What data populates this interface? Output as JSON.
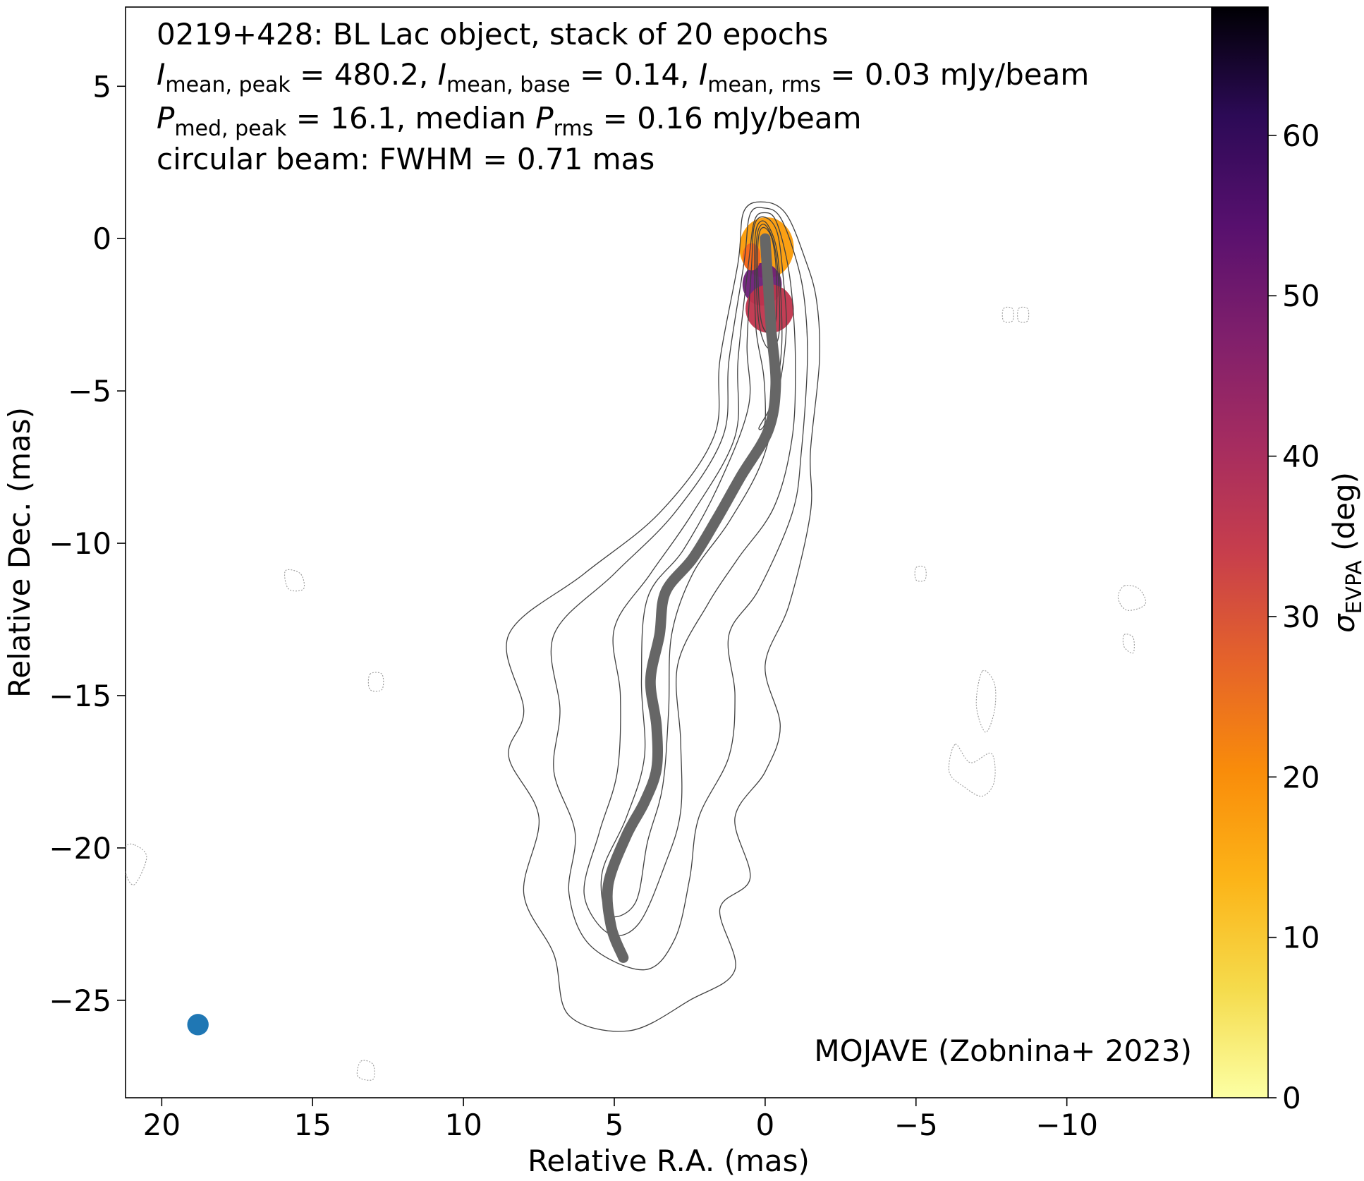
{
  "chart_data": {
    "type": "contour",
    "title_lines": [
      "0219+428: BL Lac object, stack of 20 epochs",
      "I_mean,peak = 480.2, I_mean,base = 0.14, I_mean,rms = 0.03 mJy/beam",
      "P_med,peak = 16.1, median P_rms = 0.16 mJy/beam",
      "circular beam: FWHM = 0.71 mas"
    ],
    "title": {
      "line1": "0219+428: BL Lac object, stack of 20 epochs",
      "line2": {
        "I": "I",
        "peak_sub": "mean, peak",
        "peak_val": " = 480.2, ",
        "base_sub": "mean, base",
        "base_val": " = 0.14, ",
        "rms_sub": "mean, rms",
        "rms_val": " = 0.03 mJy/beam"
      },
      "line3": {
        "P": "P",
        "peak_sub": "med, peak",
        "peak_val": " = 16.1, median ",
        "rms_sub": "rms",
        "rms_val": " = 0.16 mJy/beam"
      },
      "line4": "circular beam: FWHM = 0.71 mas"
    },
    "credit": "MOJAVE (Zobnina+ 2023)",
    "xlabel": "Relative R.A. (mas)",
    "ylabel": "Relative Dec. (mas)",
    "xlim": [
      21.2,
      -14.8
    ],
    "ylim": [
      -28.2,
      7.6
    ],
    "x_ticks": [
      20,
      15,
      10,
      5,
      0,
      -5,
      -10
    ],
    "y_ticks": [
      5,
      0,
      -5,
      -10,
      -15,
      -20,
      -25
    ],
    "colorbar": {
      "label": "σ",
      "label_sub": "EVPA",
      "label_unit": " (deg)",
      "range": [
        0,
        68
      ],
      "ticks": [
        0,
        10,
        20,
        30,
        40,
        50,
        60
      ],
      "colormap": "inferno_r"
    },
    "ridgeline": [
      [
        0.0,
        0.0
      ],
      [
        -0.1,
        -1.5
      ],
      [
        -0.2,
        -3.0
      ],
      [
        -0.35,
        -4.8
      ],
      [
        -0.1,
        -6.3
      ],
      [
        0.8,
        -7.8
      ],
      [
        1.6,
        -9.2
      ],
      [
        2.4,
        -10.5
      ],
      [
        3.3,
        -11.6
      ],
      [
        3.5,
        -13.0
      ],
      [
        3.8,
        -14.5
      ],
      [
        3.6,
        -16.0
      ],
      [
        3.6,
        -17.4
      ],
      [
        4.0,
        -18.5
      ],
      [
        4.6,
        -19.6
      ],
      [
        5.2,
        -21.2
      ],
      [
        5.1,
        -22.6
      ],
      [
        4.7,
        -23.6
      ]
    ],
    "beam": {
      "x": 18.8,
      "y": -25.8,
      "fwhm": 0.71
    },
    "intensity_contours": [
      {
        "level": 1,
        "points": [
          [
            0.9,
            -0.8
          ],
          [
            1.5,
            -4
          ],
          [
            1.7,
            -6.5
          ],
          [
            3.5,
            -9
          ],
          [
            6,
            -11
          ],
          [
            8.5,
            -13
          ],
          [
            8,
            -15.5
          ],
          [
            8.5,
            -17
          ],
          [
            7.5,
            -19
          ],
          [
            8,
            -21.5
          ],
          [
            7,
            -23.5
          ],
          [
            6.5,
            -25.5
          ],
          [
            4.5,
            -26
          ],
          [
            2.5,
            -25
          ],
          [
            1,
            -24
          ],
          [
            1.5,
            -22
          ],
          [
            0.5,
            -21
          ],
          [
            1,
            -19
          ],
          [
            0,
            -17.5
          ],
          [
            -0.5,
            -16
          ],
          [
            0,
            -14
          ],
          [
            -0.8,
            -12
          ],
          [
            -1.5,
            -9
          ],
          [
            -1.5,
            -7
          ],
          [
            -1.8,
            -4
          ],
          [
            -1.7,
            -2
          ],
          [
            -1.3,
            -0.6
          ],
          [
            -0.7,
            0.8
          ],
          [
            0,
            1.2
          ],
          [
            0.7,
            0.9
          ]
        ]
      },
      {
        "level": 2,
        "points": [
          [
            0.7,
            -0.8
          ],
          [
            1.2,
            -4
          ],
          [
            1.4,
            -6.5
          ],
          [
            3,
            -9
          ],
          [
            5,
            -11
          ],
          [
            7,
            -13
          ],
          [
            6.8,
            -15.5
          ],
          [
            7,
            -17.5
          ],
          [
            6.3,
            -19.5
          ],
          [
            6.5,
            -21.5
          ],
          [
            5.8,
            -23.2
          ],
          [
            4,
            -24
          ],
          [
            3,
            -23
          ],
          [
            2.5,
            -21
          ],
          [
            2.2,
            -19
          ],
          [
            1.2,
            -17
          ],
          [
            1,
            -15
          ],
          [
            1.2,
            -13
          ],
          [
            0.2,
            -11.5
          ],
          [
            -0.9,
            -9
          ],
          [
            -1.2,
            -7
          ],
          [
            -1.4,
            -4
          ],
          [
            -1.3,
            -2
          ],
          [
            -1,
            -0.6
          ],
          [
            -0.5,
            0.7
          ],
          [
            0,
            1
          ],
          [
            0.5,
            0.8
          ]
        ]
      },
      {
        "level": 3,
        "points": [
          [
            0.55,
            -0.8
          ],
          [
            0.9,
            -4
          ],
          [
            1,
            -6.5
          ],
          [
            2.4,
            -9
          ],
          [
            3.8,
            -11
          ],
          [
            5,
            -12.8
          ],
          [
            4.8,
            -15
          ],
          [
            4.9,
            -17.5
          ],
          [
            5.5,
            -19.5
          ],
          [
            6,
            -21.5
          ],
          [
            5.2,
            -22.8
          ],
          [
            4.2,
            -22.5
          ],
          [
            3.3,
            -20.5
          ],
          [
            2.8,
            -18.8
          ],
          [
            2.8,
            -16.5
          ],
          [
            2.9,
            -14
          ],
          [
            1.9,
            -12
          ],
          [
            0.9,
            -10.5
          ],
          [
            -0.3,
            -8.8
          ],
          [
            -0.9,
            -6.5
          ],
          [
            -1,
            -4
          ],
          [
            -0.9,
            -2
          ],
          [
            -0.7,
            -0.6
          ],
          [
            -0.35,
            0.6
          ],
          [
            0,
            0.85
          ],
          [
            0.35,
            0.6
          ]
        ]
      },
      {
        "level": 4,
        "points": [
          [
            0.45,
            -0.9
          ],
          [
            0.6,
            -3.5
          ],
          [
            0.55,
            -5.5
          ],
          [
            1.5,
            -8
          ],
          [
            2.7,
            -10.2
          ],
          [
            3.9,
            -11.8
          ],
          [
            4.1,
            -14.5
          ],
          [
            4,
            -17
          ],
          [
            4.6,
            -19
          ],
          [
            5.4,
            -20.8
          ],
          [
            5.2,
            -22.2
          ],
          [
            4.3,
            -21.8
          ],
          [
            3.9,
            -19.8
          ],
          [
            3.4,
            -18
          ],
          [
            3.2,
            -15.5
          ],
          [
            3.1,
            -13
          ],
          [
            2.4,
            -11
          ],
          [
            1.2,
            -9.3
          ],
          [
            0.1,
            -7.3
          ],
          [
            -0.45,
            -5
          ],
          [
            -0.7,
            -3
          ],
          [
            -0.6,
            -1.3
          ],
          [
            -0.4,
            0.2
          ],
          [
            0,
            0.7
          ],
          [
            0.35,
            0.45
          ]
        ]
      },
      {
        "level": 5,
        "points": [
          [
            0.35,
            -1
          ],
          [
            0.3,
            -3
          ],
          [
            0.05,
            -4.5
          ],
          [
            0,
            -6
          ],
          [
            0.2,
            -6.2
          ],
          [
            -0.3,
            -5.2
          ],
          [
            -0.55,
            -3.5
          ],
          [
            -0.5,
            -1.5
          ],
          [
            -0.35,
            -0.2
          ],
          [
            0,
            0.55
          ],
          [
            0.3,
            0.3
          ]
        ]
      },
      {
        "level": 6,
        "points": [
          [
            0.3,
            -1
          ],
          [
            0.2,
            -2.8
          ],
          [
            -0.1,
            -3.6
          ],
          [
            -0.45,
            -3.2
          ],
          [
            -0.45,
            -1.5
          ],
          [
            -0.3,
            -0.2
          ],
          [
            0,
            0.45
          ],
          [
            0.25,
            0.2
          ]
        ]
      },
      {
        "level": 7,
        "points": [
          [
            0.25,
            -0.9
          ],
          [
            0.15,
            -2.6
          ],
          [
            -0.1,
            -3.1
          ],
          [
            -0.35,
            -2.7
          ],
          [
            -0.38,
            -1.3
          ],
          [
            -0.25,
            -0.1
          ],
          [
            0,
            0.35
          ],
          [
            0.2,
            0.15
          ]
        ]
      }
    ],
    "negative_contours": [
      {
        "level": -1,
        "points": [
          [
            20.9,
            -19.9
          ],
          [
            20.5,
            -20.3
          ],
          [
            20.9,
            -21.2
          ],
          [
            21.2,
            -20.8
          ],
          [
            21.2,
            -20
          ]
        ]
      },
      {
        "level": -1,
        "points": [
          [
            -7.2,
            -14.2
          ],
          [
            -7.6,
            -14.6
          ],
          [
            -7.6,
            -15.5
          ],
          [
            -7.3,
            -16.2
          ],
          [
            -7.0,
            -15.3
          ]
        ]
      },
      {
        "level": -1,
        "points": [
          [
            -6.3,
            -16.6
          ],
          [
            -6.8,
            -17.2
          ],
          [
            -7.5,
            -16.9
          ],
          [
            -7.6,
            -17.8
          ],
          [
            -7.2,
            -18.3
          ],
          [
            -6.6,
            -18.0
          ],
          [
            -6.1,
            -17.5
          ]
        ]
      },
      {
        "level": -1,
        "points": [
          [
            -11.9,
            -11.4
          ],
          [
            -12.4,
            -11.5
          ],
          [
            -12.6,
            -12.0
          ],
          [
            -12.0,
            -12.2
          ],
          [
            -11.7,
            -11.8
          ]
        ]
      },
      {
        "level": -1,
        "points": [
          [
            15.9,
            -10.9
          ],
          [
            15.4,
            -11.0
          ],
          [
            15.3,
            -11.5
          ],
          [
            15.8,
            -11.5
          ]
        ]
      },
      {
        "level": -1,
        "points": [
          [
            13.4,
            -27.0
          ],
          [
            13.0,
            -27.1
          ],
          [
            13.0,
            -27.6
          ],
          [
            13.5,
            -27.5
          ]
        ]
      },
      {
        "level": -1,
        "points": [
          [
            -7.9,
            -2.3
          ],
          [
            -8.2,
            -2.3
          ],
          [
            -8.2,
            -2.7
          ],
          [
            -7.9,
            -2.7
          ]
        ]
      },
      {
        "level": -1,
        "points": [
          [
            -8.4,
            -2.3
          ],
          [
            -8.7,
            -2.3
          ],
          [
            -8.7,
            -2.7
          ],
          [
            -8.4,
            -2.7
          ]
        ]
      },
      {
        "level": -1,
        "points": [
          [
            -5.0,
            -10.8
          ],
          [
            -5.3,
            -10.8
          ],
          [
            -5.3,
            -11.2
          ],
          [
            -5.0,
            -11.2
          ]
        ]
      },
      {
        "level": -1,
        "points": [
          [
            13.1,
            -14.3
          ],
          [
            12.7,
            -14.3
          ],
          [
            12.7,
            -14.8
          ],
          [
            13.1,
            -14.8
          ]
        ]
      },
      {
        "level": -1,
        "points": [
          [
            -11.9,
            -13.0
          ],
          [
            -12.2,
            -13.1
          ],
          [
            -12.2,
            -13.6
          ],
          [
            -11.9,
            -13.4
          ]
        ]
      }
    ],
    "polarization_blob": {
      "cmap": [
        "#fcffa4",
        "#f9c932",
        "#fb9b06",
        "#f6661d",
        "#e4452d",
        "#c0344c",
        "#982c6e",
        "#6b1e77",
        "#3c1266",
        "#000004"
      ],
      "regions": [
        {
          "cx": -0.05,
          "cy": -0.3,
          "rx": 0.9,
          "ry": 1.0,
          "sigma": 15
        },
        {
          "cx": 0.1,
          "cy": -1.5,
          "rx": 0.65,
          "ry": 0.7,
          "sigma": 54
        },
        {
          "cx": -0.15,
          "cy": -2.3,
          "rx": 0.8,
          "ry": 0.8,
          "sigma": 40
        },
        {
          "cx": 0.45,
          "cy": -0.6,
          "rx": 0.3,
          "ry": 0.45,
          "sigma": 22
        }
      ]
    }
  }
}
